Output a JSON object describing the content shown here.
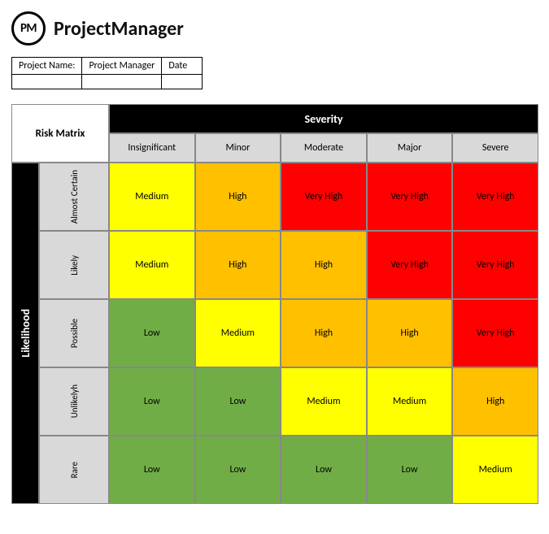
{
  "brand": {
    "logo_text": "PM",
    "name": "ProjectManager"
  },
  "meta": {
    "headers": [
      "Project Name:",
      "Project Manager",
      "Date"
    ],
    "values": [
      "",
      "",
      ""
    ]
  },
  "matrix": {
    "title": "Risk Matrix",
    "severity_label": "Severity",
    "likelihood_label": "Likelihood",
    "severity_levels": [
      "Insignificant",
      "Minor",
      "Moderate",
      "Major",
      "Severe"
    ],
    "likelihood_levels": [
      "Almost Certain",
      "Likely",
      "Possible",
      "Unlikelyh",
      "Rare"
    ],
    "cells": [
      [
        "Medium",
        "High",
        "Very High",
        "Very High",
        "Very High"
      ],
      [
        "Medium",
        "High",
        "High",
        "Very High",
        "Very High"
      ],
      [
        "Low",
        "Medium",
        "High",
        "High",
        "Very High"
      ],
      [
        "Low",
        "Low",
        "Medium",
        "Medium",
        "High"
      ],
      [
        "Low",
        "Low",
        "Low",
        "Low",
        "Medium"
      ]
    ],
    "cell_colors": [
      [
        "#ffff00",
        "#ffc000",
        "#ff0000",
        "#ff0000",
        "#ff0000"
      ],
      [
        "#ffff00",
        "#ffc000",
        "#ffc000",
        "#ff0000",
        "#ff0000"
      ],
      [
        "#70ad47",
        "#ffff00",
        "#ffc000",
        "#ffc000",
        "#ff0000"
      ],
      [
        "#70ad47",
        "#70ad47",
        "#ffff00",
        "#ffff00",
        "#ffc000"
      ],
      [
        "#70ad47",
        "#70ad47",
        "#70ad47",
        "#70ad47",
        "#ffff00"
      ]
    ],
    "colors": {
      "header_bg": "#000000",
      "header_fg": "#ffffff",
      "subheader_bg": "#d9d9d9",
      "border": "#888888",
      "low": "#70ad47",
      "medium": "#ffff00",
      "high": "#ffc000",
      "very_high": "#ff0000"
    }
  }
}
